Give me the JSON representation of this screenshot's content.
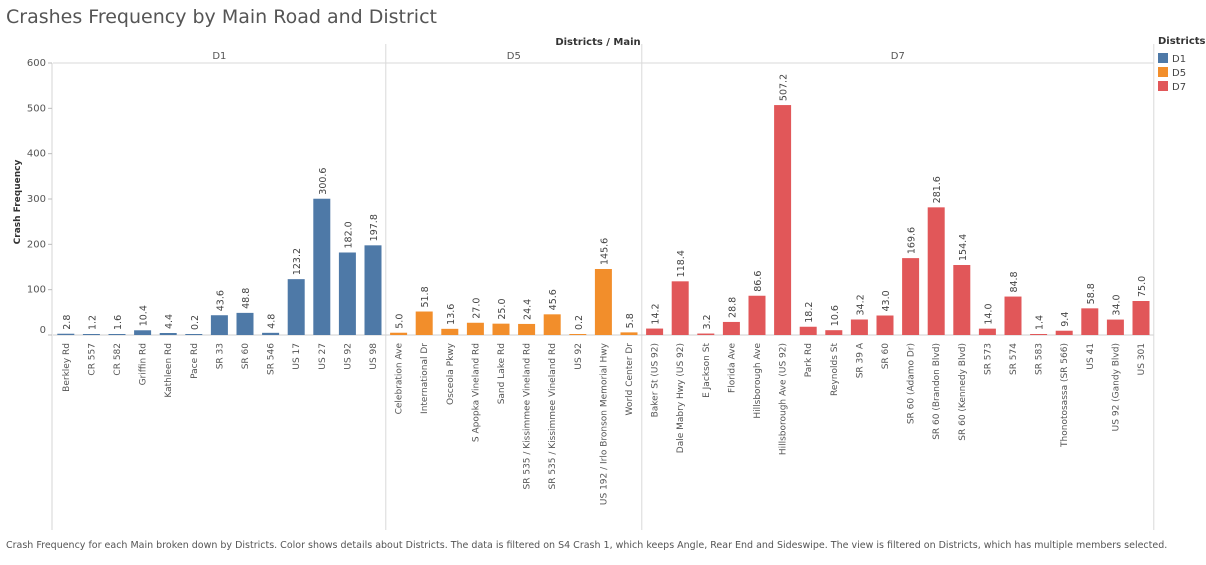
{
  "title": "Crashes Frequency by Main Road and District",
  "caption": "Crash Frequency for each Main broken down by Districts.  Color shows details about Districts. The data is filtered on S4 Crash 1, which keeps Angle, Rear End and Sideswipe. The view is filtered on Districts, which has multiple members selected.",
  "colors": {
    "D1": "#4e79a7",
    "D5": "#f28e2b",
    "D7": "#e15759"
  },
  "chart_data": {
    "type": "bar",
    "title": "Crashes Frequency by Main Road and District",
    "column_header": "Districts / Main",
    "ylabel": "Crash Frequency",
    "ylim": [
      0,
      600
    ],
    "yticks": [
      0,
      100,
      200,
      300,
      400,
      500,
      600
    ],
    "grid": false,
    "legend": {
      "title": "Districts",
      "position": "right",
      "entries": [
        "D1",
        "D5",
        "D7"
      ]
    },
    "groups": [
      {
        "name": "D1",
        "categories": [
          "Berkley Rd",
          "CR 557",
          "CR 582",
          "Griffin Rd",
          "Kathleen Rd",
          "Pace Rd",
          "SR 33",
          "SR 60",
          "SR 546",
          "US 17",
          "US 27",
          "US 92",
          "US 98"
        ],
        "values": [
          2.8,
          1.2,
          1.6,
          10.4,
          4.4,
          0.2,
          43.6,
          48.8,
          4.8,
          123.2,
          300.6,
          182.0,
          197.8
        ],
        "labels": [
          "2.8",
          "1.2",
          "1.6",
          "10.4",
          "4.4",
          "0.2",
          "43.6",
          "48.8",
          "4.8",
          "123.2",
          "300.6",
          "182.0",
          "197.8"
        ]
      },
      {
        "name": "D5",
        "categories": [
          "Celebration Ave",
          "International Dr",
          "Osceola Pkwy",
          "S Apopka Vineland Rd",
          "Sand Lake Rd",
          "SR 535 / Kissimmee Vineland Rd",
          "SR 535 / Kissimmee Vineland Rd",
          "US 92",
          "US 192 / Irlo Bronson Memorial Hwy",
          "World Center Dr"
        ],
        "values": [
          5.0,
          51.8,
          13.6,
          27.0,
          25.0,
          24.4,
          45.6,
          0.2,
          145.6,
          5.8
        ],
        "labels": [
          "5.0",
          "51.8",
          "13.6",
          "27.0",
          "25.0",
          "24.4",
          "45.6",
          "0.2",
          "145.6",
          "5.8"
        ]
      },
      {
        "name": "D7",
        "categories": [
          "Baker St (US 92)",
          "Dale Mabry Hwy (US 92)",
          "E Jackson St",
          "Florida Ave",
          "Hillsborough Ave",
          "Hillsborough Ave (US 92)",
          "Park Rd",
          "Reynolds St",
          "SR 39 A",
          "SR 60",
          "SR 60 (Adamo Dr)",
          "SR 60 (Brandon Blvd)",
          "SR 60 (Kennedy Blvd)",
          "SR 573",
          "SR 574",
          "SR 583",
          "Thonotosassa (SR 566)",
          "US 41",
          "US 92 (Gandy Blvd)",
          "US 301"
        ],
        "values": [
          14.2,
          118.4,
          3.2,
          28.8,
          86.6,
          507.2,
          18.2,
          10.6,
          34.2,
          43.0,
          169.6,
          281.6,
          154.4,
          14.0,
          84.8,
          1.4,
          9.4,
          58.8,
          34.0,
          75.0
        ],
        "labels": [
          "14.2",
          "118.4",
          "3.2",
          "28.8",
          "86.6",
          "507.2",
          "18.2",
          "10.6",
          "34.2",
          "43.0",
          "169.6",
          "281.6",
          "154.4",
          "14.0",
          "84.8",
          "1.4",
          "9.4",
          "58.8",
          "34.0",
          "75.0"
        ]
      }
    ]
  }
}
